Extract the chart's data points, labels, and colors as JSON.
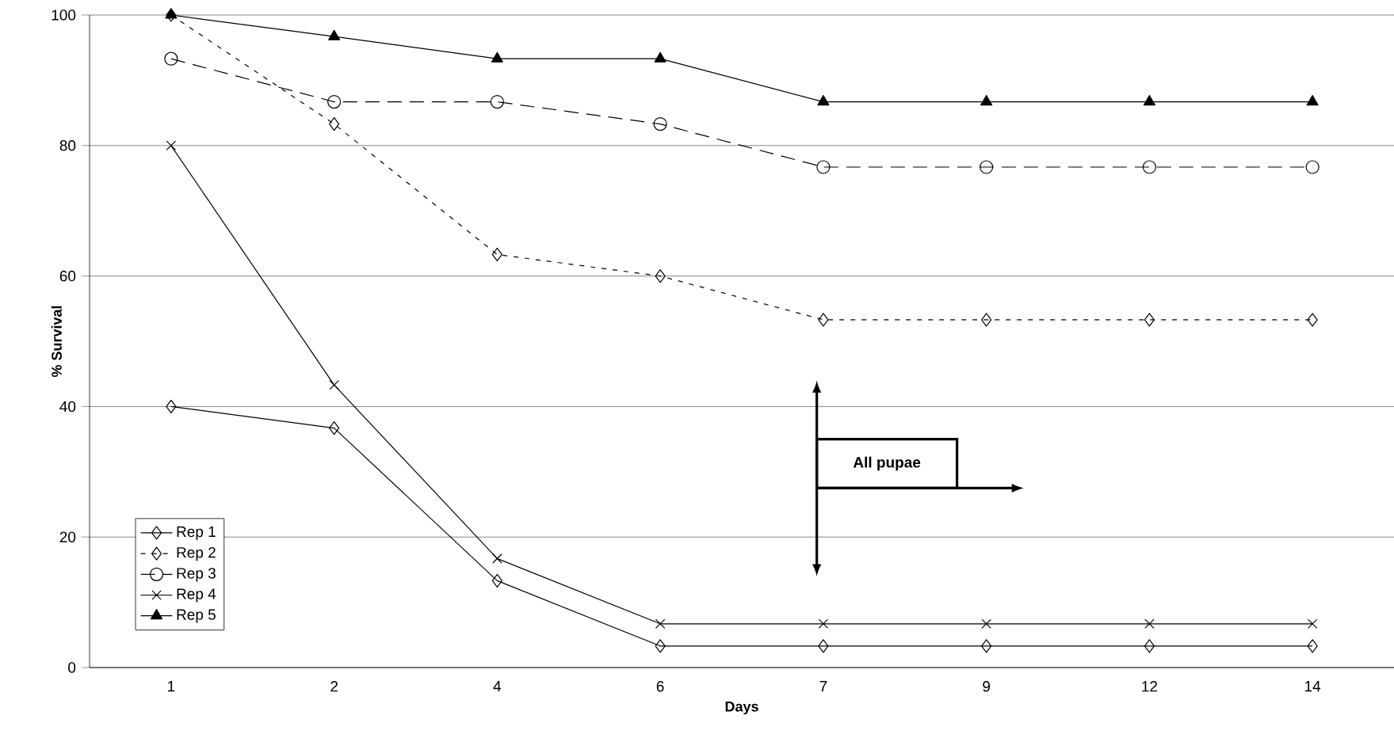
{
  "chart_data": {
    "type": "line",
    "xlabel": "Days",
    "ylabel": "% Survival",
    "categories": [
      "1",
      "2",
      "4",
      "6",
      "7",
      "9",
      "12",
      "14"
    ],
    "series": [
      {
        "name": "Rep 1",
        "color": "#000000",
        "marker": "diamond",
        "line_style": "solid",
        "values": [
          40,
          36.7,
          13.3,
          3.3,
          3.3,
          3.3,
          3.3,
          3.3
        ]
      },
      {
        "name": "Rep 2",
        "color": "#000000",
        "marker": "diamond",
        "line_style": "dotted",
        "values": [
          100,
          83.3,
          63.3,
          60,
          53.3,
          53.3,
          53.3,
          53.3
        ]
      },
      {
        "name": "Rep 3",
        "color": "#000000",
        "marker": "circle",
        "line_style": "dashed",
        "values": [
          93.3,
          86.7,
          86.7,
          83.3,
          76.7,
          76.7,
          76.7,
          76.7
        ]
      },
      {
        "name": "Rep 4",
        "color": "#000000",
        "marker": "cross",
        "line_style": "solid",
        "values": [
          80,
          43.3,
          16.7,
          6.7,
          6.7,
          6.7,
          6.7,
          6.7
        ]
      },
      {
        "name": "Rep 5",
        "color": "#000000",
        "marker": "triangle",
        "line_style": "solid",
        "values": [
          100,
          96.7,
          93.3,
          93.3,
          86.7,
          86.7,
          86.7,
          86.7
        ]
      }
    ],
    "ylim": [
      0,
      100
    ],
    "yticks": [
      0,
      20,
      40,
      60,
      80,
      100
    ],
    "grid": "y",
    "legend": "bottom left",
    "annotations": [
      "All pupae"
    ]
  }
}
